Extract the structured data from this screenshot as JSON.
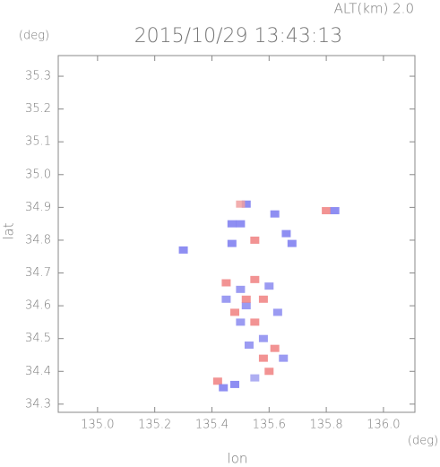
{
  "chart_data": {
    "type": "scatter",
    "title": "2015/10/29 13:43:13",
    "subtitle": "ALT(km) 2.0",
    "x_label": "lon",
    "y_label": "lat",
    "x_unit": "(deg)",
    "y_unit": "(deg)",
    "xlim": [
      134.8625,
      136.11
    ],
    "ylim": [
      34.275,
      35.363
    ],
    "xticks": [
      {
        "value": 135,
        "label": "135.0"
      },
      135.2,
      135.4,
      135.6,
      135.8,
      {
        "value": 136,
        "label": "136.0"
      }
    ],
    "yticks": [
      34.3,
      34.4,
      34.5,
      34.6,
      34.7,
      34.8,
      34.9,
      {
        "value": 35,
        "label": "35.0"
      },
      35.1,
      35.2,
      35.3
    ],
    "x": [
      135.52,
      135.5,
      135.5,
      135.47,
      135.47,
      135.55,
      135.62,
      135.66,
      135.68,
      135.8,
      135.83,
      135.3,
      135.45,
      135.5,
      135.55,
      135.58,
      135.52,
      135.48,
      135.6,
      135.63,
      135.55,
      135.5,
      135.58,
      135.53,
      135.62,
      135.58,
      135.65,
      135.6,
      135.55,
      135.48,
      135.42,
      135.44,
      135.52,
      135.45
    ],
    "values": [
      34.91,
      34.91,
      34.85,
      34.85,
      34.79,
      34.8,
      34.88,
      34.82,
      34.79,
      34.89,
      34.89,
      34.77,
      34.67,
      34.65,
      34.68,
      34.62,
      34.6,
      34.58,
      34.66,
      34.58,
      34.55,
      34.55,
      34.5,
      34.48,
      34.47,
      34.44,
      34.44,
      34.4,
      34.38,
      34.36,
      34.37,
      34.35,
      34.62,
      34.62
    ],
    "colors": [
      "#7a7af0",
      "#f0a0a0",
      "#7a7af0",
      "#7a7af0",
      "#7a7af0",
      "#f08080",
      "#7a7af0",
      "#7a7af0",
      "#7a7af0",
      "#f08080",
      "#7a7af0",
      "#7a7af0",
      "#f08080",
      "#8a8af0",
      "#f08080",
      "#f08080",
      "#8a8af0",
      "#f08080",
      "#8a8af0",
      "#8a8af0",
      "#f08080",
      "#8a8af0",
      "#8a8af0",
      "#8a8af0",
      "#f08080",
      "#f08080",
      "#8a8af0",
      "#f08080",
      "#a0a0f0",
      "#7a7af0",
      "#f08080",
      "#7a7af0",
      "#f08080",
      "#8a8af0"
    ]
  }
}
